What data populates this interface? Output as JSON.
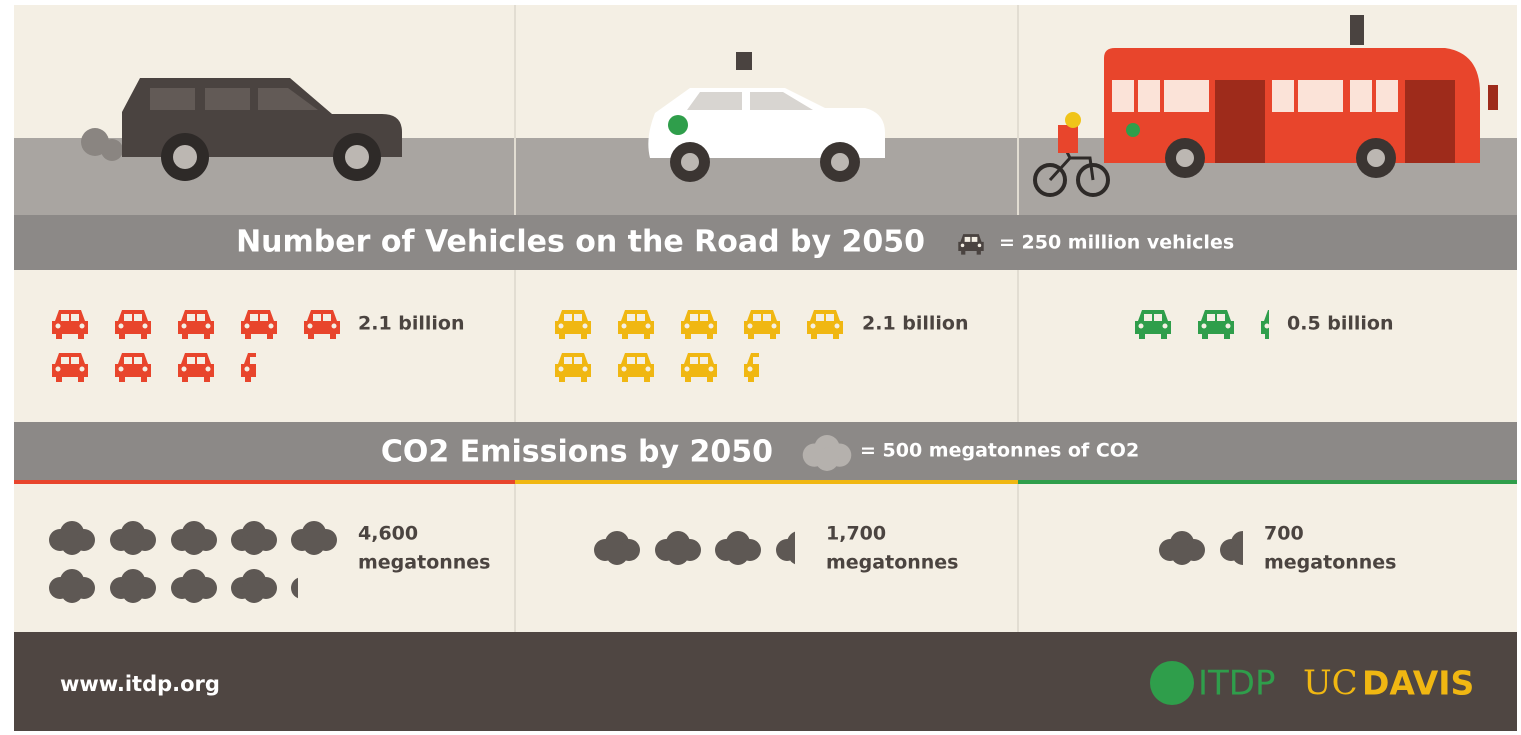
{
  "vehicles": {
    "title": "Number of Vehicles on the Road by 2050",
    "legend": "= 250 million vehicles",
    "columns": [
      "2.1 billion",
      "2.1 billion",
      "0.5 billion"
    ]
  },
  "emissions": {
    "title": "CO2 Emissions by 2050",
    "legend": "= 500 megatonnes of CO2",
    "columns": [
      {
        "amount": "4,600",
        "unit": "megatonnes"
      },
      {
        "amount": "1,700",
        "unit": "megatonnes"
      },
      {
        "amount": "700",
        "unit": "megatonnes"
      }
    ]
  },
  "footer": {
    "url": "www.itdp.org",
    "itdp": "ITDP",
    "uc": "UC",
    "davis": "DAVIS"
  }
}
